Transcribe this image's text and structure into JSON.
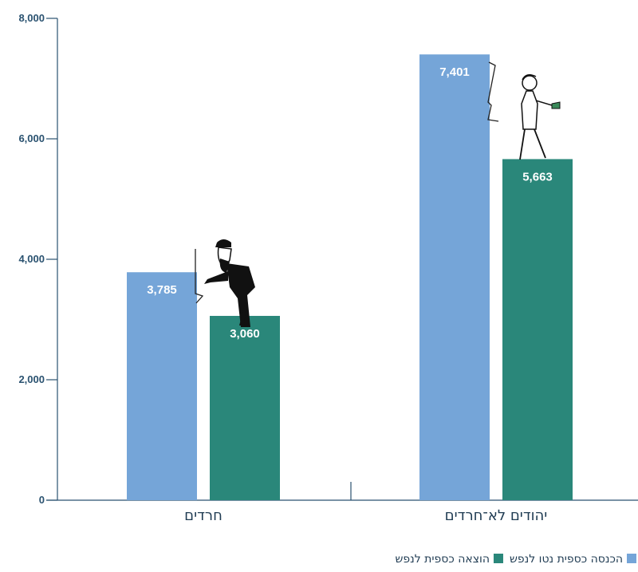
{
  "chart_data": {
    "type": "bar",
    "categories": [
      "חרדים",
      "יהודים לא־חרדים"
    ],
    "series": [
      {
        "name": "הכנסה כספית נטו לנפש",
        "values": [
          3785,
          7401
        ],
        "labels": [
          "3,785",
          "7,401"
        ],
        "color": "#75a5d8"
      },
      {
        "name": "הוצאה כספית לנפש",
        "values": [
          3060,
          5663
        ],
        "labels": [
          "3,060",
          "5,663"
        ],
        "color": "#2a877a"
      }
    ],
    "ylim": [
      0,
      8000
    ],
    "yticks": [
      0,
      2000,
      4000,
      6000,
      8000
    ],
    "ytick_labels": [
      "0",
      "2,000",
      "4,000",
      "6,000",
      "8,000"
    ],
    "grid": false,
    "legend_position": "bottom-right",
    "title": "",
    "xlabel": "",
    "ylabel": ""
  },
  "colors": {
    "axis": "#2a5270",
    "label_text": "#1f3b52",
    "background": "#ffffff"
  },
  "icons": [
    "haredi-man-icon",
    "secular-man-icon"
  ]
}
